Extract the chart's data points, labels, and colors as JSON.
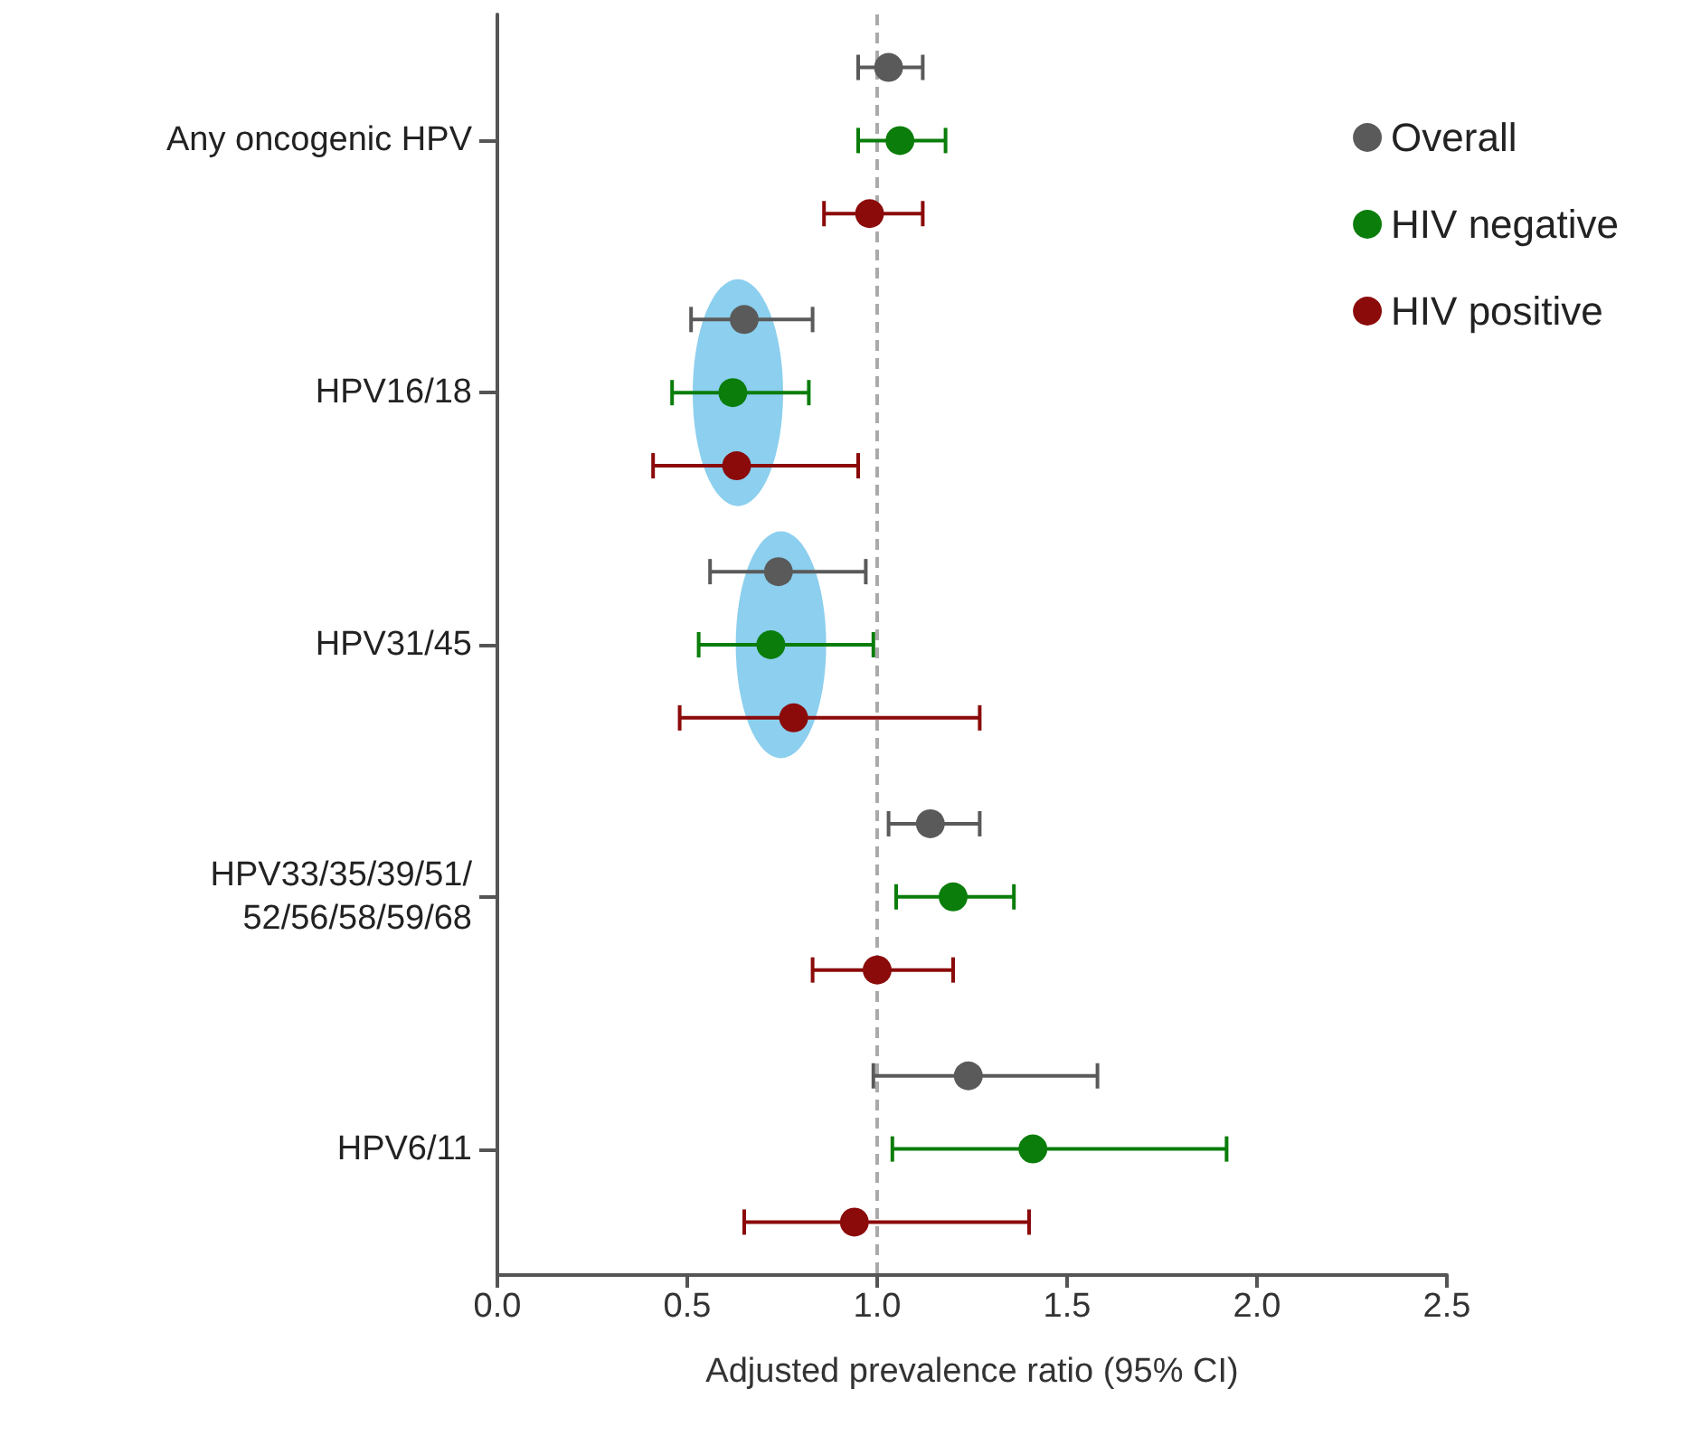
{
  "chart_data": {
    "type": "scatter",
    "orientation": "horizontal",
    "xlabel": "Adjusted prevalence ratio (95% CI)",
    "categories": [
      "Any oncogenic HPV",
      "HPV16/18",
      "HPV31/45",
      "HPV33/35/39/51/\n52/56/58/59/68",
      "HPV6/11"
    ],
    "series": [
      {
        "name": "Overall",
        "color": "#5a5a5a",
        "values": [
          1.03,
          0.65,
          0.74,
          1.14,
          1.24
        ],
        "errors": [
          [
            0.95,
            1.12
          ],
          [
            0.51,
            0.83
          ],
          [
            0.56,
            0.97
          ],
          [
            1.03,
            1.27
          ],
          [
            0.99,
            1.58
          ]
        ]
      },
      {
        "name": "HIV negative",
        "color": "#0a7d0a",
        "values": [
          1.06,
          0.62,
          0.72,
          1.2,
          1.41
        ],
        "errors": [
          [
            0.95,
            1.18
          ],
          [
            0.46,
            0.82
          ],
          [
            0.53,
            0.99
          ],
          [
            1.05,
            1.36
          ],
          [
            1.04,
            1.92
          ]
        ]
      },
      {
        "name": "HIV positive",
        "color": "#8b0a0a",
        "values": [
          0.98,
          0.63,
          0.78,
          1.0,
          0.94
        ],
        "errors": [
          [
            0.86,
            1.12
          ],
          [
            0.41,
            0.95
          ],
          [
            0.48,
            1.27
          ],
          [
            0.83,
            1.2
          ],
          [
            0.65,
            1.4
          ]
        ]
      }
    ],
    "xlim": [
      0,
      2.5
    ],
    "xticks": [
      {
        "value": 0,
        "label": "0.0"
      },
      {
        "value": 0.5,
        "label": "0.5"
      },
      {
        "value": 1,
        "label": "1.0"
      },
      {
        "value": 1.5,
        "label": "1.5"
      },
      {
        "value": 2,
        "label": "2.0"
      },
      {
        "value": 2.5,
        "label": "2.5"
      }
    ],
    "ref_lines": [
      {
        "axis": "x",
        "value": 1,
        "color": "#aaaaaa",
        "line_style": "dashed"
      }
    ],
    "legend": "top right",
    "grid": false,
    "marker": "circle"
  }
}
